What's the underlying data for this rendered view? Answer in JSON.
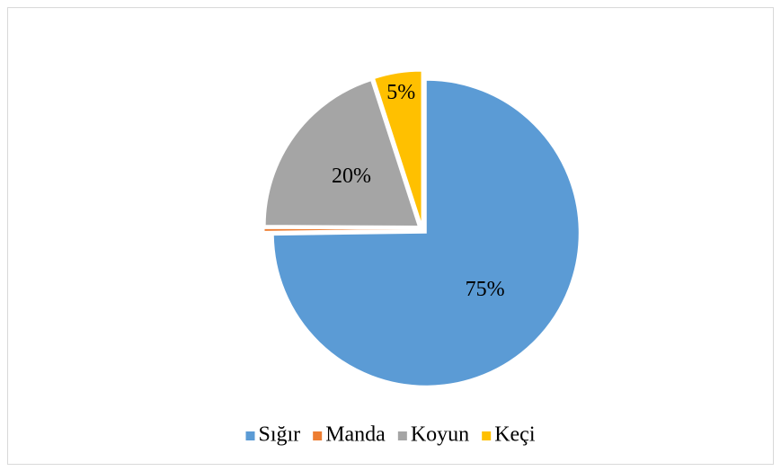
{
  "chart_data": {
    "type": "pie",
    "categories": [
      "Sığır",
      "Manda",
      "Koyun",
      "Keçi"
    ],
    "values": [
      75,
      0.3,
      20,
      5
    ],
    "value_labels": [
      "75%",
      null,
      "20%",
      "5%"
    ],
    "colors": [
      "#5b9bd5",
      "#ed7d31",
      "#a5a5a5",
      "#ffc000"
    ],
    "legend": "bottom"
  }
}
